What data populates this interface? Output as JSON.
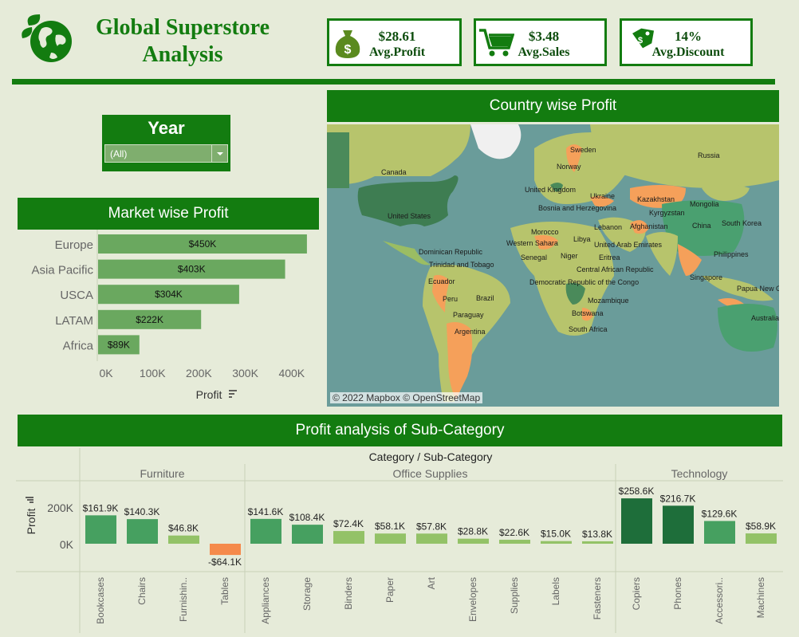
{
  "header": {
    "title_line1": "Global Superstore",
    "title_line2": "Analysis"
  },
  "kpis": [
    {
      "value": "$28.61",
      "label": "Avg.Profit",
      "icon": "money-bag-icon"
    },
    {
      "value": "$3.48",
      "label": "Avg.Sales",
      "icon": "shopping-cart-icon"
    },
    {
      "value": "14%",
      "label": "Avg.Discount",
      "icon": "price-tag-icon"
    }
  ],
  "filter": {
    "title": "Year",
    "selected": "(All)"
  },
  "market": {
    "title": "Market wise Profit",
    "axis_label": "Profit",
    "ticks": [
      "0K",
      "100K",
      "200K",
      "300K",
      "400K"
    ]
  },
  "map": {
    "title": "Country wise Profit",
    "attribution": "© 2022 Mapbox © OpenStreetMap",
    "labels": [
      "Russia",
      "Canada",
      "United States",
      "Sweden",
      "Norway",
      "United Kingdom",
      "Ukraine",
      "Kazakhstan",
      "Mongolia",
      "Bosnia and Herzegovina",
      "Kyrgyzstan",
      "Lebanon",
      "Afghanistan",
      "China",
      "South Korea",
      "Morocco",
      "Libya",
      "Western Sahara",
      "United Arab Emirates",
      "Dominican Republic",
      "Trinidad and Tobago",
      "Senegal",
      "Niger",
      "Eritrea",
      "Central African Republic",
      "Philippines",
      "Ecuador",
      "Democratic Republic of the Congo",
      "Singapore",
      "Papua New Gu",
      "Peru",
      "Brazil",
      "Mozambique",
      "Paraguay",
      "Botswana",
      "Australia",
      "South Africa",
      "Argentina"
    ]
  },
  "subcategory": {
    "title": "Profit analysis of Sub-Category",
    "header": "Category / Sub-Category",
    "axis_label": "Profit",
    "ticks": [
      "200K",
      "0K"
    ]
  },
  "chart_data": [
    {
      "type": "bar",
      "orientation": "horizontal",
      "title": "Market wise Profit",
      "xlabel": "Profit",
      "xlim": [
        0,
        400000
      ],
      "categories": [
        "Europe",
        "Asia Pacific",
        "USCA",
        "LATAM",
        "Africa"
      ],
      "values": [
        450000,
        403000,
        304000,
        222000,
        89000
      ],
      "data_labels": [
        "$450K",
        "$403K",
        "$304K",
        "$222K",
        "$89K"
      ],
      "color": "#6aa85f"
    },
    {
      "type": "bar",
      "title": "Profit analysis of Sub-Category",
      "ylabel": "Profit",
      "groups": [
        {
          "name": "Furniture",
          "categories": [
            "Bookcases",
            "Chairs",
            "Furnishin..",
            "Tables"
          ],
          "values": [
            161900,
            140300,
            46800,
            -64100
          ],
          "data_labels": [
            "$161.9K",
            "$140.3K",
            "$46.8K",
            "-$64.1K"
          ]
        },
        {
          "name": "Office Supplies",
          "categories": [
            "Appliances",
            "Storage",
            "Binders",
            "Paper",
            "Art",
            "Envelopes",
            "Supplies",
            "Labels",
            "Fasteners"
          ],
          "values": [
            141600,
            108400,
            72400,
            58100,
            57800,
            28800,
            22600,
            15000,
            13800
          ],
          "data_labels": [
            "$141.6K",
            "$108.4K",
            "$72.4K",
            "$58.1K",
            "$57.8K",
            "$28.8K",
            "$22.6K",
            "$15.0K",
            "$13.8K"
          ]
        },
        {
          "name": "Technology",
          "categories": [
            "Copiers",
            "Phones",
            "Accessori..",
            "Machines"
          ],
          "values": [
            258600,
            216700,
            129600,
            58900
          ],
          "data_labels": [
            "$258.6K",
            "$216.7K",
            "$129.6K",
            "$58.9K"
          ]
        }
      ],
      "colors": {
        "high": "#1e6e3a",
        "mid": "#46a060",
        "low": "#93c267",
        "negative": "#f58a4b"
      }
    }
  ]
}
